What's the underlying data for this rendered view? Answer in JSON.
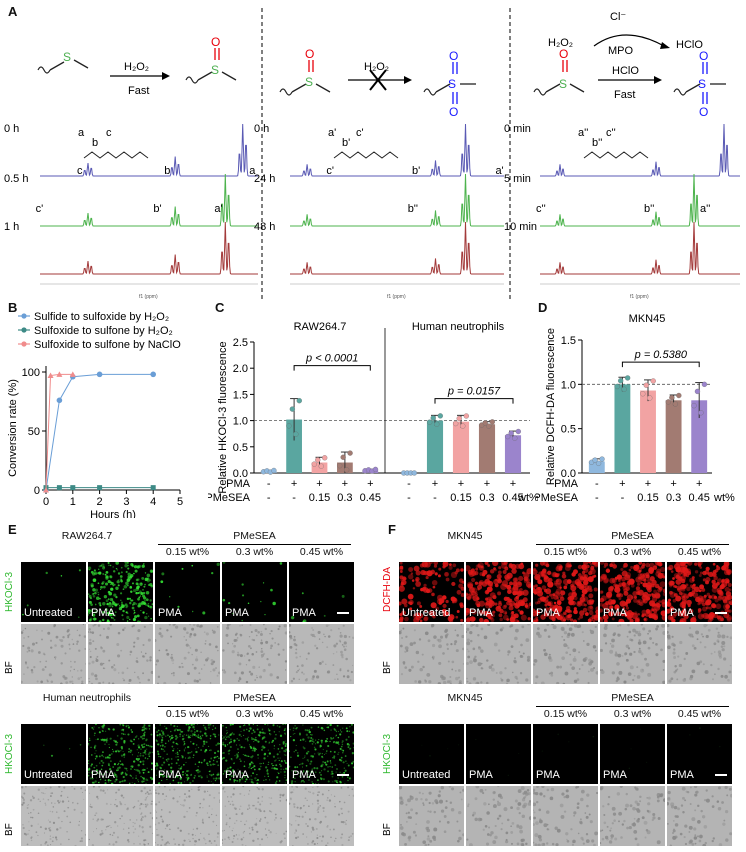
{
  "panels": {
    "A": {
      "label": "A",
      "reactions": [
        {
          "reagent": "H₂O₂",
          "condition": "Fast"
        },
        {
          "reagent": "H₂O₂",
          "condition": ""
        },
        {
          "reagent_top": "Cl⁻",
          "reagent_left": "H₂O₂",
          "catalyst": "MPO",
          "product_oxidant": "HClO",
          "reagent": "HClO",
          "condition": "Fast"
        }
      ],
      "times_1": [
        "0 h",
        "0.5 h",
        "1 h"
      ],
      "times_2": [
        "0 h",
        "24 h",
        "48 h"
      ],
      "times_3": [
        "0 min",
        "5 min",
        "10 min"
      ],
      "peaks_1": {
        "t0": [
          "c",
          "b",
          "a"
        ],
        "t1": [
          "c'",
          "b'",
          "a'"
        ],
        "struct": [
          "a",
          "b",
          "c"
        ]
      },
      "peaks_2": {
        "t0": [
          "c'",
          "b'",
          "a'"
        ],
        "t1": [
          "b''"
        ],
        "struct": [
          "a'",
          "b'",
          "c'"
        ]
      },
      "peaks_3": {
        "t0": [],
        "t1": [
          "c''",
          "b''",
          "a''"
        ],
        "struct": [
          "a''",
          "b''",
          "c''"
        ]
      },
      "axis_label": "f1 (ppm)"
    },
    "B": {
      "label": "B",
      "legend": [
        "Sulfide to sulfoxide by H₂O₂",
        "Sulfoxide to sulfone by H₂O₂",
        "Sulfoxide to sulfone by NaClO"
      ],
      "ylabel": "Conversion rate (%)",
      "xlabel": "Hours (h)"
    },
    "C": {
      "label": "C",
      "ylabel": "Relative HKOCl-3 fluorescence",
      "left_title": "RAW264.7",
      "right_title": "Human neutrophils",
      "p_left": "p < 0.0001",
      "p_right": "p = 0.0157",
      "row1_label": "PMA",
      "row2_label": "PMeSEA",
      "row2_unit": "wt%"
    },
    "D": {
      "label": "D",
      "title": "MKN45",
      "ylabel": "Relative DCFH-DA fluorescence",
      "p_value": "p = 0.5380",
      "row1_label": "PMA",
      "row2_label": "PMeSEA",
      "row2_unit": "wt%"
    },
    "E": {
      "label": "E",
      "top_title": "RAW264.7",
      "bottom_title": "Human neutrophils",
      "group": "PMeSEA",
      "concs": [
        "0.15 wt%",
        "0.3 wt%",
        "0.45 wt%"
      ],
      "cells": [
        "Untreated",
        "PMA",
        "PMA",
        "PMA",
        "PMA"
      ],
      "stain": "HKOCl-3",
      "bf": "BF"
    },
    "F": {
      "label": "F",
      "top_title": "MKN45",
      "bottom_title": "MKN45",
      "group": "PMeSEA",
      "concs": [
        "0.15 wt%",
        "0.3 wt%",
        "0.45 wt%"
      ],
      "cells": [
        "Untreated",
        "PMA",
        "PMA",
        "PMA",
        "PMA"
      ],
      "stain_top": "DCFH-DA",
      "stain_bottom": "HKOCl-3",
      "bf": "BF"
    }
  },
  "colors": {
    "sulfur_green": "#4caf50",
    "oxygen_red": "#e8000b",
    "sulfone_blue": "#1a1aff",
    "nmr_blue": "#5a5ab4",
    "nmr_green": "#4db34d",
    "nmr_red": "#a33a3a",
    "bar_blue": "#8fb8de",
    "bar_teal": "#5aa6a0",
    "bar_pink": "#f2a3a3",
    "bar_brown": "#a27b72",
    "bar_purple": "#9b84cc"
  },
  "chart_data": [
    {
      "type": "line",
      "title": "",
      "xlabel": "Hours (h)",
      "ylabel": "Conversion rate (%)",
      "xlim": [
        0,
        5
      ],
      "ylim": [
        0,
        100
      ],
      "xticks": [
        "0",
        "1",
        "2",
        "3",
        "4",
        "5"
      ],
      "yticks": [
        "0",
        "50",
        "100"
      ],
      "series": [
        {
          "name": "Sulfide to sulfoxide by H₂O₂",
          "x": [
            0,
            0.5,
            1,
            2,
            4
          ],
          "y": [
            0,
            76,
            96,
            98,
            98
          ],
          "color": "#6a9ed6"
        },
        {
          "name": "Sulfoxide to sulfone by H₂O₂",
          "x": [
            0,
            0.5,
            1,
            2,
            4
          ],
          "y": [
            2,
            2,
            2,
            2,
            2
          ],
          "color": "#3d8a86"
        },
        {
          "name": "Sulfoxide to sulfone by NaClO",
          "x": [
            0,
            0.17,
            0.5,
            1
          ],
          "y": [
            0,
            97,
            98,
            98
          ],
          "color": "#f08c8c"
        }
      ]
    },
    {
      "type": "bar",
      "title": "RAW264.7 / Human neutrophils",
      "ylabel": "Relative HKOCl-3 fluorescence",
      "ylim": [
        0,
        2.5
      ],
      "yticks": [
        "0.0",
        "0.5",
        "1.0",
        "1.5",
        "2.0",
        "2.5"
      ],
      "reference_line": 1.0,
      "groups": [
        {
          "name": "RAW264.7",
          "PMA": [
            "-",
            "+",
            "+",
            "+",
            "+"
          ],
          "PMeSEA": [
            "-",
            "-",
            "0.15",
            "0.3",
            "0.45"
          ],
          "values": [
            0.03,
            1.02,
            0.2,
            0.2,
            0.05
          ],
          "errors": [
            0.02,
            0.4,
            0.1,
            0.2,
            0.02
          ]
        },
        {
          "name": "Human neutrophils",
          "PMA": [
            "-",
            "+",
            "+",
            "+",
            "+"
          ],
          "PMeSEA": [
            "-",
            "-",
            "0.15",
            "0.3",
            "0.45"
          ],
          "values": [
            0.0,
            1.0,
            0.98,
            0.93,
            0.72
          ],
          "errors": [
            0.0,
            0.1,
            0.12,
            0.05,
            0.08
          ]
        }
      ],
      "annotations": [
        "p < 0.0001",
        "p = 0.0157"
      ]
    },
    {
      "type": "bar",
      "title": "MKN45",
      "ylabel": "Relative DCFH-DA fluorescence",
      "ylim": [
        0,
        1.5
      ],
      "yticks": [
        "0.0",
        "0.5",
        "1.0",
        "1.5"
      ],
      "reference_line": 1.0,
      "PMA": [
        "-",
        "+",
        "+",
        "+",
        "+"
      ],
      "PMeSEA": [
        "-",
        "-",
        "0.15",
        "0.3",
        "0.45"
      ],
      "values": [
        0.13,
        1.0,
        0.93,
        0.82,
        0.82
      ],
      "errors": [
        0.03,
        0.08,
        0.12,
        0.06,
        0.2
      ],
      "annotations": [
        "p = 0.5380"
      ]
    }
  ]
}
